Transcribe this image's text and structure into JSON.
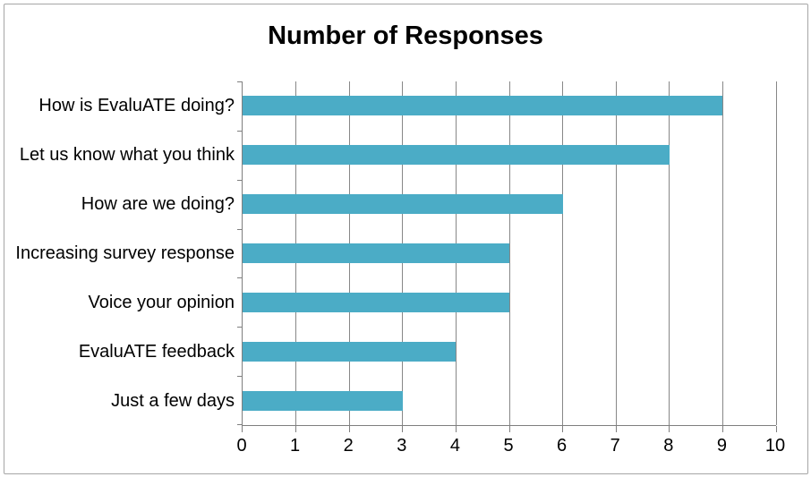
{
  "chart_data": {
    "type": "bar",
    "orientation": "horizontal",
    "title": "Number of Responses",
    "categories": [
      "How is EvaluATE doing?",
      "Let us know what you think",
      "How are we doing?",
      "Increasing survey response",
      "Voice your opinion",
      "EvaluATE feedback",
      "Just a few days"
    ],
    "values": [
      9,
      8,
      6,
      5,
      5,
      4,
      3
    ],
    "xlabel": "",
    "ylabel": "",
    "xlim": [
      0,
      10
    ],
    "x_tick_labels": [
      "0",
      "1",
      "2",
      "3",
      "4",
      "5",
      "6",
      "7",
      "8",
      "9",
      "10"
    ],
    "grid": true,
    "legend": "none",
    "colors": {
      "bar": "#4bacc6",
      "gridline": "#878787",
      "axis": "#7f7f7f",
      "text": "#000000",
      "frame_border": "#a6a6a6",
      "background": "#ffffff"
    }
  }
}
